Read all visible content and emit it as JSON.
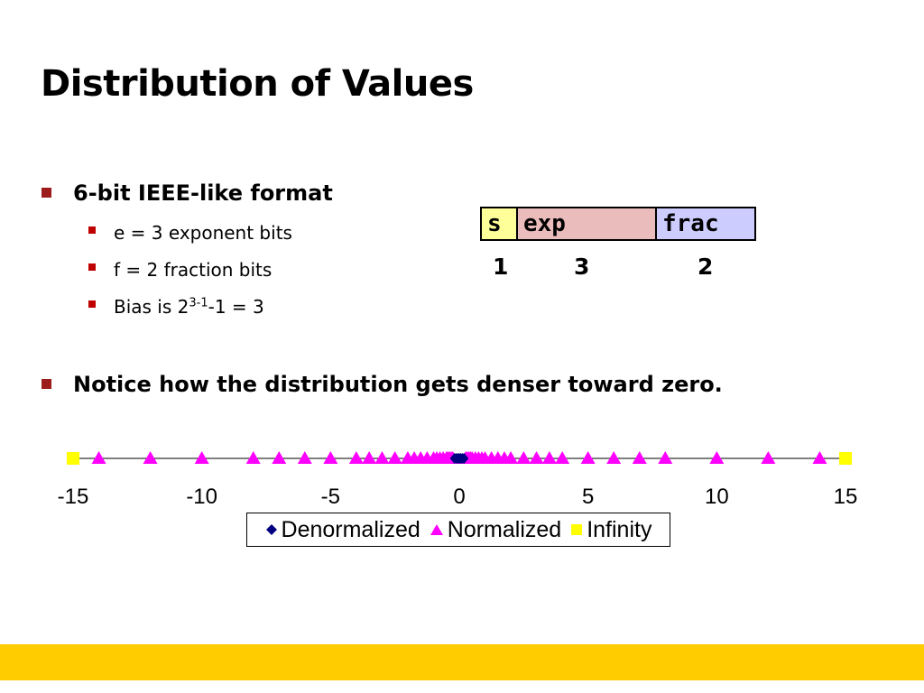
{
  "slide": {
    "title": "Distribution of Values",
    "bullets": [
      {
        "text": "6-bit IEEE-like format",
        "sub": [
          {
            "text": "e = 3 exponent bits"
          },
          {
            "text": "f = 2 fraction bits"
          },
          {
            "pre": "Bias is 2",
            "sup": "3-1",
            "post": "-1 = 3"
          }
        ]
      },
      {
        "text": "Notice how the distribution gets denser toward zero."
      }
    ],
    "format": {
      "fields": [
        "s",
        "exp",
        "frac"
      ],
      "bits": [
        "1",
        "3",
        "2"
      ]
    }
  },
  "colors": {
    "bullet": "#9c1c1c",
    "denormalized": "#000080",
    "normalized": "#ff00ff",
    "infinity": "#ffff00",
    "footer": "#ffcc00",
    "s_field": "#ffff99",
    "exp_field": "#ebbcbc",
    "frac_field": "#ccccff"
  },
  "chart_data": {
    "type": "scatter",
    "xlim": [
      -15,
      15
    ],
    "xticks": [
      "-15",
      "-10",
      "-5",
      "0",
      "5",
      "10",
      "15"
    ],
    "legend_position": "bottom",
    "series": [
      {
        "name": "Denormalized",
        "marker": "diamond",
        "x": [
          -0.1875,
          -0.125,
          -0.0625,
          0,
          0,
          0.0625,
          0.125,
          0.1875
        ],
        "y": [
          0,
          0,
          0,
          0,
          0,
          0,
          0,
          0
        ]
      },
      {
        "name": "Normalized",
        "marker": "triangle",
        "x": [
          -14,
          -12,
          -10,
          -8,
          -7,
          -6,
          -5,
          -4,
          -3.5,
          -3,
          -2.5,
          -2,
          -1.75,
          -1.5,
          -1.25,
          -1,
          -0.875,
          -0.75,
          -0.625,
          -0.5,
          -0.4375,
          -0.375,
          -0.3125,
          -0.25,
          0.25,
          0.3125,
          0.375,
          0.4375,
          0.5,
          0.625,
          0.75,
          0.875,
          1,
          1.25,
          1.5,
          1.75,
          2,
          2.5,
          3,
          3.5,
          4,
          5,
          6,
          7,
          8,
          10,
          12,
          14
        ],
        "y": [
          0,
          0,
          0,
          0,
          0,
          0,
          0,
          0,
          0,
          0,
          0,
          0,
          0,
          0,
          0,
          0,
          0,
          0,
          0,
          0,
          0,
          0,
          0,
          0,
          0,
          0,
          0,
          0,
          0,
          0,
          0,
          0,
          0,
          0,
          0,
          0,
          0,
          0,
          0,
          0,
          0,
          0,
          0,
          0,
          0,
          0,
          0,
          0
        ]
      },
      {
        "name": "Infinity",
        "marker": "square",
        "x": [
          -15,
          15
        ],
        "y": [
          0,
          0
        ]
      }
    ]
  }
}
